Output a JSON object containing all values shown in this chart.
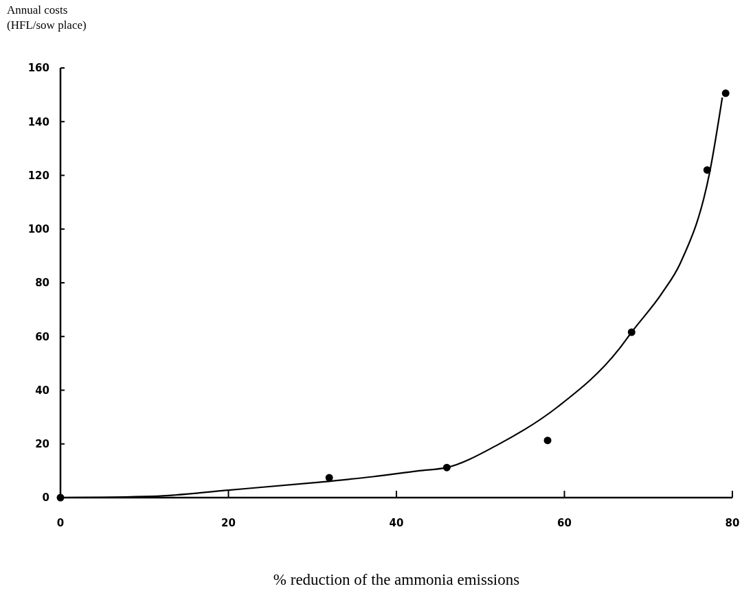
{
  "chart_data": {
    "type": "scatter",
    "xlabel": "% reduction of the ammonia emissions",
    "ylabel": "Annual costs\n(HFL/sow place)",
    "xlim": [
      0,
      80
    ],
    "xticks": [
      0,
      20,
      40,
      60,
      80
    ],
    "ylim": [
      0,
      160
    ],
    "yticks": [
      0,
      20,
      40,
      60,
      80,
      100,
      120,
      140,
      160
    ],
    "grid": false,
    "series": [
      {
        "color": "#000000",
        "marker": "circle",
        "x": [
          0,
          32,
          46,
          58,
          68,
          77,
          79.2
        ],
        "values": [
          0,
          7.4,
          11.2,
          21.3,
          61.6,
          122,
          150.6
        ]
      },
      {
        "type": "line",
        "color": "#000000",
        "marker": "none",
        "line_style": "solid",
        "x": [
          0,
          11,
          20,
          30.3,
          37.2,
          42.7,
          46,
          51.9,
          59.2,
          66.5,
          68,
          71.7,
          73.8,
          77.4,
          78.8
        ],
        "values": [
          0,
          0.5,
          2.8,
          5.6,
          7.8,
          10,
          11.2,
          19.4,
          33.8,
          55.3,
          61.6,
          76.5,
          87.3,
          122.8,
          149
        ]
      }
    ]
  }
}
